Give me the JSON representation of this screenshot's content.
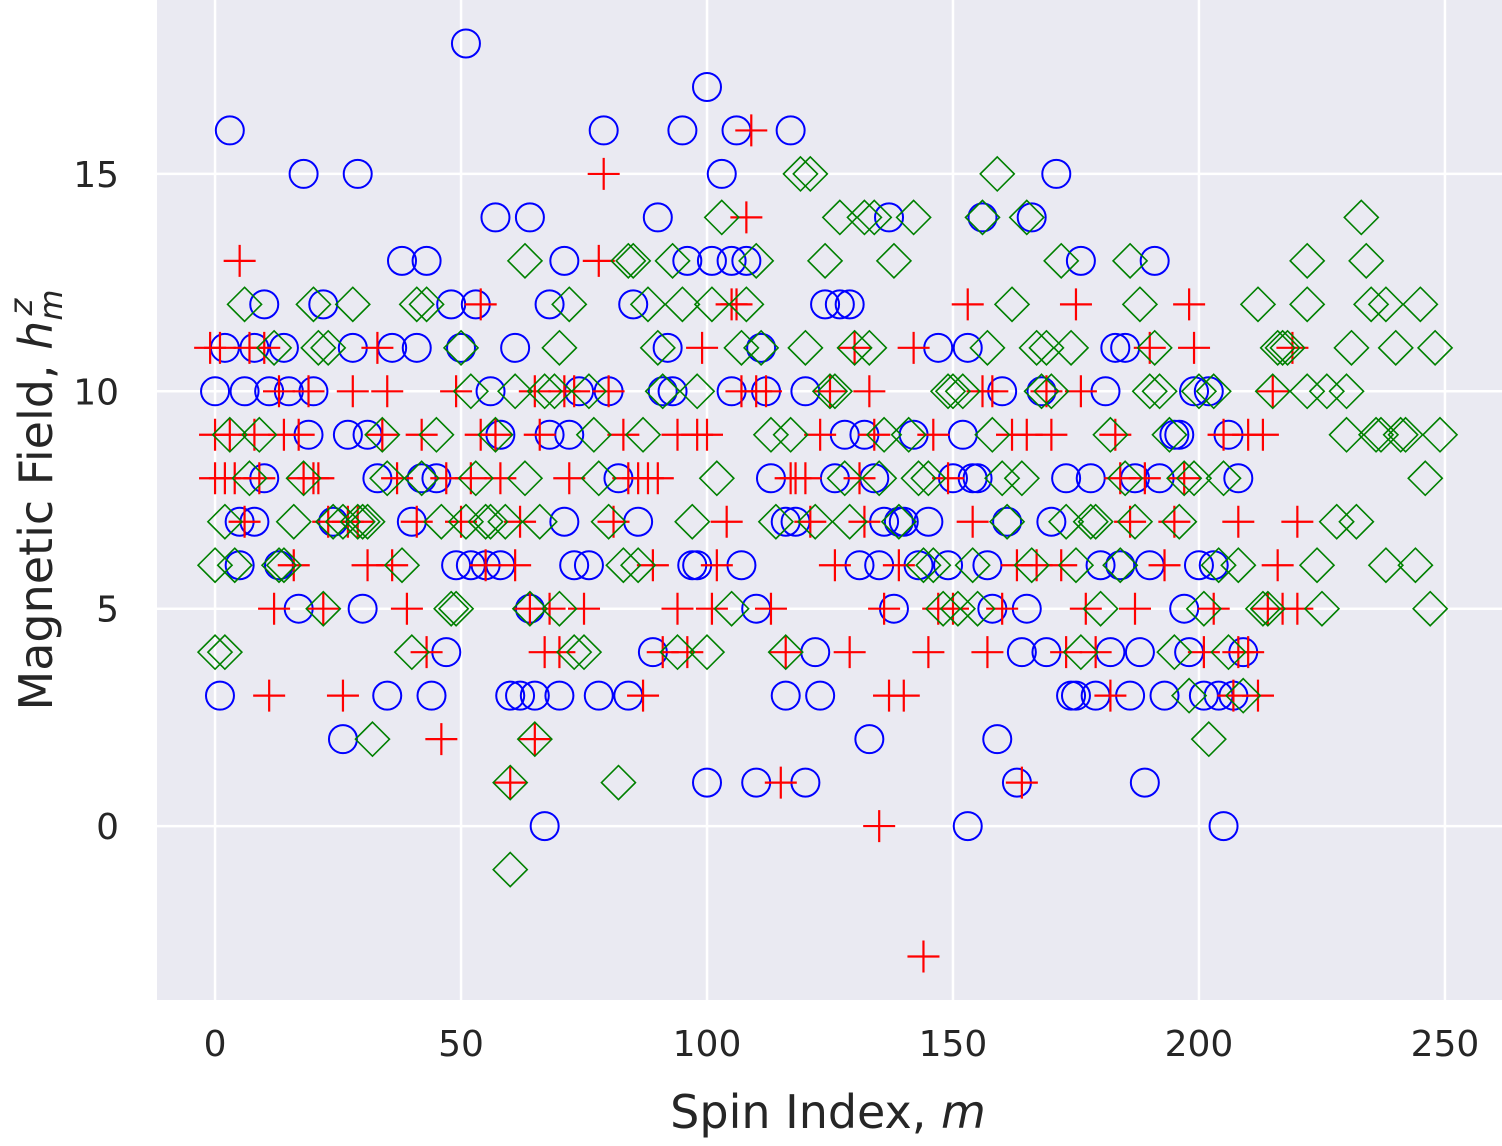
{
  "chart_data": {
    "type": "scatter",
    "xlabel": {
      "text": "Spin Index,",
      "symbol": "m"
    },
    "ylabel": {
      "text": "Magnetic Field,",
      "symbol": "h",
      "subscript": "m",
      "superscript": "z"
    },
    "xlim": [
      -11.8,
      261.6
    ],
    "ylim": [
      -4,
      19
    ],
    "xticks": [
      0,
      50,
      100,
      150,
      200,
      250
    ],
    "yticks": [
      0,
      5,
      10,
      15
    ],
    "grid": true,
    "background": "#eaeaf2",
    "series": [
      {
        "color": "#0000ff",
        "marker": "circle",
        "x": [
          0,
          1,
          2,
          3,
          5,
          5,
          6,
          8,
          8,
          10,
          10,
          11,
          13,
          14,
          15,
          17,
          18,
          19,
          20,
          22,
          24,
          26,
          27,
          28,
          29,
          30,
          31,
          33,
          35,
          36,
          38,
          40,
          41,
          42,
          43,
          44,
          45,
          47,
          48,
          49,
          50,
          51,
          52,
          53,
          55,
          56,
          57,
          58,
          58,
          60,
          61,
          62,
          64,
          64,
          65,
          67,
          68,
          68,
          70,
          71,
          71,
          72,
          73,
          74,
          76,
          78,
          79,
          80,
          82,
          84,
          85,
          86,
          89,
          90,
          91,
          92,
          93,
          95,
          96,
          97,
          98,
          100,
          100,
          101,
          103,
          105,
          105,
          106,
          107,
          108,
          110,
          110,
          111,
          112,
          113,
          116,
          117,
          116,
          118,
          120,
          120,
          122,
          123,
          124,
          126,
          127,
          128,
          129,
          131,
          132,
          133,
          134,
          135,
          136,
          137,
          138,
          139,
          140,
          142,
          143,
          145,
          147,
          149,
          150,
          152,
          153,
          153,
          154,
          155,
          156,
          157,
          158,
          159,
          160,
          161,
          163,
          164,
          165,
          166,
          168,
          169,
          170,
          171,
          173,
          174,
          175,
          176,
          178,
          179,
          180,
          181,
          182,
          183,
          184,
          185,
          186,
          187,
          188,
          189,
          190,
          191,
          192,
          193,
          195,
          196,
          197,
          198,
          199,
          200,
          201,
          202,
          203,
          204,
          205,
          206,
          207,
          208,
          209
        ],
        "values": [
          10,
          3,
          11,
          16,
          7,
          6,
          10,
          11,
          7,
          12,
          8,
          10,
          6,
          11,
          10,
          5,
          15,
          9,
          10,
          12,
          7,
          2,
          9,
          11,
          15,
          5,
          9,
          8,
          3,
          11,
          13,
          7,
          11,
          8,
          13,
          3,
          8,
          4,
          12,
          6,
          11,
          18,
          6,
          12,
          6,
          10,
          14,
          6,
          9,
          3,
          11,
          3,
          5,
          14,
          3,
          0,
          9,
          12,
          3,
          7,
          13,
          9,
          6,
          10,
          6,
          3,
          16,
          10,
          8,
          3,
          12,
          7,
          4,
          14,
          10,
          11,
          10,
          16,
          13,
          6,
          6,
          17,
          1,
          13,
          15,
          10,
          13,
          16,
          6,
          13,
          5,
          1,
          11,
          10,
          8,
          3,
          16,
          7,
          7,
          10,
          1,
          4,
          3,
          12,
          8,
          12,
          9,
          12,
          6,
          9,
          2,
          8,
          6,
          7,
          14,
          5,
          7,
          7,
          9,
          6,
          7,
          11,
          6,
          8,
          9,
          0,
          11,
          8,
          8,
          14,
          6,
          5,
          2,
          10,
          7,
          1,
          4,
          5,
          14,
          10,
          4,
          7,
          15,
          8,
          3,
          3,
          13,
          8,
          3,
          6,
          10,
          4,
          11,
          6,
          11,
          3,
          8,
          4,
          1,
          6,
          13,
          8,
          3,
          9,
          9,
          5,
          4,
          10,
          6,
          3,
          10,
          6,
          3,
          0,
          9,
          3,
          8,
          4
        ]
      },
      {
        "color": "#ff0000",
        "marker": "plus",
        "x": [
          -1,
          0,
          0,
          1,
          2,
          3,
          4,
          5,
          6,
          7,
          8,
          9,
          10,
          11,
          12,
          13,
          14,
          16,
          17,
          18,
          19,
          20,
          21,
          22,
          23,
          26,
          27,
          28,
          29,
          31,
          33,
          34,
          35,
          36,
          37,
          39,
          41,
          42,
          43,
          46,
          47,
          49,
          50,
          52,
          54,
          54,
          55,
          57,
          58,
          60,
          61,
          62,
          64,
          65,
          65,
          66,
          67,
          68,
          70,
          71,
          72,
          73,
          75,
          78,
          79,
          80,
          81,
          83,
          84,
          86,
          87,
          88,
          89,
          90,
          91,
          94,
          94,
          96,
          98,
          99,
          100,
          101,
          102,
          104,
          105,
          106,
          107,
          108,
          109,
          110,
          112,
          113,
          115,
          116,
          117,
          118,
          120,
          121,
          123,
          125,
          126,
          129,
          130,
          131,
          132,
          133,
          134,
          135,
          136,
          137,
          139,
          140,
          142,
          144,
          145,
          146,
          147,
          149,
          150,
          153,
          154,
          156,
          157,
          158,
          160,
          162,
          163,
          164,
          165,
          167,
          169,
          170,
          172,
          173,
          175,
          176,
          177,
          179,
          182,
          183,
          184,
          186,
          187,
          189,
          190,
          193,
          195,
          197,
          198,
          199,
          201,
          203,
          205,
          207,
          208,
          208,
          210,
          210,
          212,
          213,
          214,
          215,
          216,
          217,
          219,
          220,
          220
        ],
        "values": [
          11,
          8,
          9,
          11,
          8,
          9,
          8,
          13,
          7,
          11,
          9,
          8,
          11,
          3,
          5,
          10,
          9,
          6,
          9,
          8,
          10,
          8,
          8,
          5,
          7,
          3,
          7,
          10,
          7,
          6,
          11,
          9,
          10,
          6,
          8,
          5,
          7,
          9,
          4,
          2,
          8,
          10,
          7,
          8,
          12,
          9,
          6,
          9,
          8,
          1,
          6,
          7,
          5,
          10,
          2,
          9,
          4,
          5,
          4,
          10,
          8,
          10,
          5,
          13,
          15,
          10,
          7,
          9,
          8,
          8,
          3,
          8,
          6,
          8,
          4,
          9,
          5,
          4,
          9,
          11,
          9,
          5,
          6,
          7,
          12,
          12,
          10,
          14,
          16,
          10,
          10,
          5,
          1,
          4,
          8,
          8,
          8,
          7,
          9,
          10,
          6,
          4,
          11,
          8,
          7,
          10,
          9,
          0,
          5,
          3,
          6,
          3,
          11,
          -3,
          4,
          9,
          5,
          8,
          5,
          12,
          7,
          10,
          4,
          10,
          5,
          9,
          6,
          1,
          9,
          6,
          10,
          9,
          6,
          4,
          12,
          10,
          5,
          4,
          3,
          9,
          8,
          7,
          5,
          8,
          11,
          6,
          7,
          8,
          12,
          11,
          4,
          5,
          9,
          3,
          4,
          7,
          4,
          9,
          3,
          9,
          5,
          10,
          6,
          5,
          11,
          5,
          7
        ]
      },
      {
        "color": "#008000",
        "marker": "diamond",
        "x": [
          0,
          0,
          2,
          2,
          3,
          4,
          6,
          7,
          9,
          12,
          13,
          14,
          16,
          18,
          20,
          21,
          22,
          23,
          24,
          26,
          28,
          29,
          30,
          31,
          32,
          34,
          35,
          38,
          40,
          41,
          42,
          43,
          45,
          46,
          48,
          49,
          50,
          51,
          52,
          53,
          55,
          56,
          57,
          59,
          60,
          60,
          61,
          63,
          63,
          64,
          65,
          66,
          67,
          69,
          70,
          70,
          72,
          73,
          75,
          76,
          77,
          78,
          80,
          82,
          83,
          84,
          85,
          86,
          87,
          88,
          90,
          91,
          93,
          94,
          95,
          97,
          98,
          100,
          101,
          102,
          103,
          105,
          107,
          108,
          110,
          111,
          113,
          114,
          116,
          117,
          119,
          120,
          121,
          122,
          124,
          125,
          126,
          127,
          128,
          129,
          130,
          132,
          133,
          134,
          135,
          136,
          138,
          139,
          141,
          142,
          143,
          144,
          145,
          146,
          148,
          149,
          150,
          151,
          152,
          154,
          155,
          156,
          157,
          158,
          159,
          160,
          161,
          162,
          164,
          165,
          166,
          167,
          168,
          169,
          170,
          172,
          173,
          174,
          175,
          176,
          178,
          179,
          180,
          182,
          184,
          185,
          186,
          187,
          188,
          190,
          191,
          192,
          194,
          195,
          196,
          197,
          198,
          199,
          200,
          201,
          202,
          203,
          204,
          205,
          206,
          208,
          209,
          212,
          213,
          214,
          215,
          216,
          217,
          218,
          222,
          222,
          222,
          224,
          225,
          226,
          228,
          230,
          230,
          231,
          232,
          233,
          234,
          235,
          236,
          237,
          238,
          238,
          240,
          241,
          242,
          244,
          245,
          246,
          247,
          248,
          249
        ],
        "values": [
          6,
          4,
          4,
          7,
          9,
          6,
          12,
          8,
          9,
          11,
          6,
          6,
          7,
          8,
          12,
          11,
          5,
          11,
          7,
          7,
          12,
          7,
          7,
          7,
          2,
          9,
          8,
          6,
          4,
          12,
          8,
          12,
          9,
          7,
          5,
          5,
          11,
          7,
          10,
          8,
          7,
          7,
          9,
          7,
          1,
          -1,
          10,
          8,
          13,
          5,
          2,
          7,
          10,
          10,
          5,
          11,
          12,
          4,
          4,
          10,
          9,
          8,
          7,
          1,
          6,
          13,
          13,
          6,
          9,
          12,
          11,
          10,
          13,
          4,
          12,
          7,
          10,
          4,
          12,
          8,
          14,
          5,
          11,
          12,
          13,
          11,
          9,
          7,
          4,
          9,
          15,
          11,
          15,
          7,
          13,
          10,
          10,
          14,
          8,
          7,
          11,
          14,
          11,
          14,
          8,
          9,
          13,
          7,
          9,
          14,
          8,
          6,
          8,
          6,
          5,
          10,
          10,
          5,
          10,
          6,
          5,
          14,
          11,
          9,
          15,
          8,
          7,
          12,
          8,
          14,
          6,
          11,
          10,
          11,
          10,
          13,
          7,
          11,
          6,
          4,
          7,
          7,
          5,
          9,
          6,
          8,
          13,
          7,
          12,
          10,
          11,
          10,
          9,
          4,
          7,
          8,
          3,
          8,
          10,
          5,
          2,
          10,
          6,
          8,
          4,
          6,
          3,
          12,
          5,
          5,
          10,
          11,
          11,
          11,
          10,
          12,
          13,
          6,
          5,
          10,
          7,
          10,
          9,
          11,
          7,
          14,
          13,
          12,
          9,
          9,
          12,
          6,
          11,
          9,
          9,
          6,
          12,
          8,
          5,
          11,
          9
        ]
      }
    ]
  }
}
